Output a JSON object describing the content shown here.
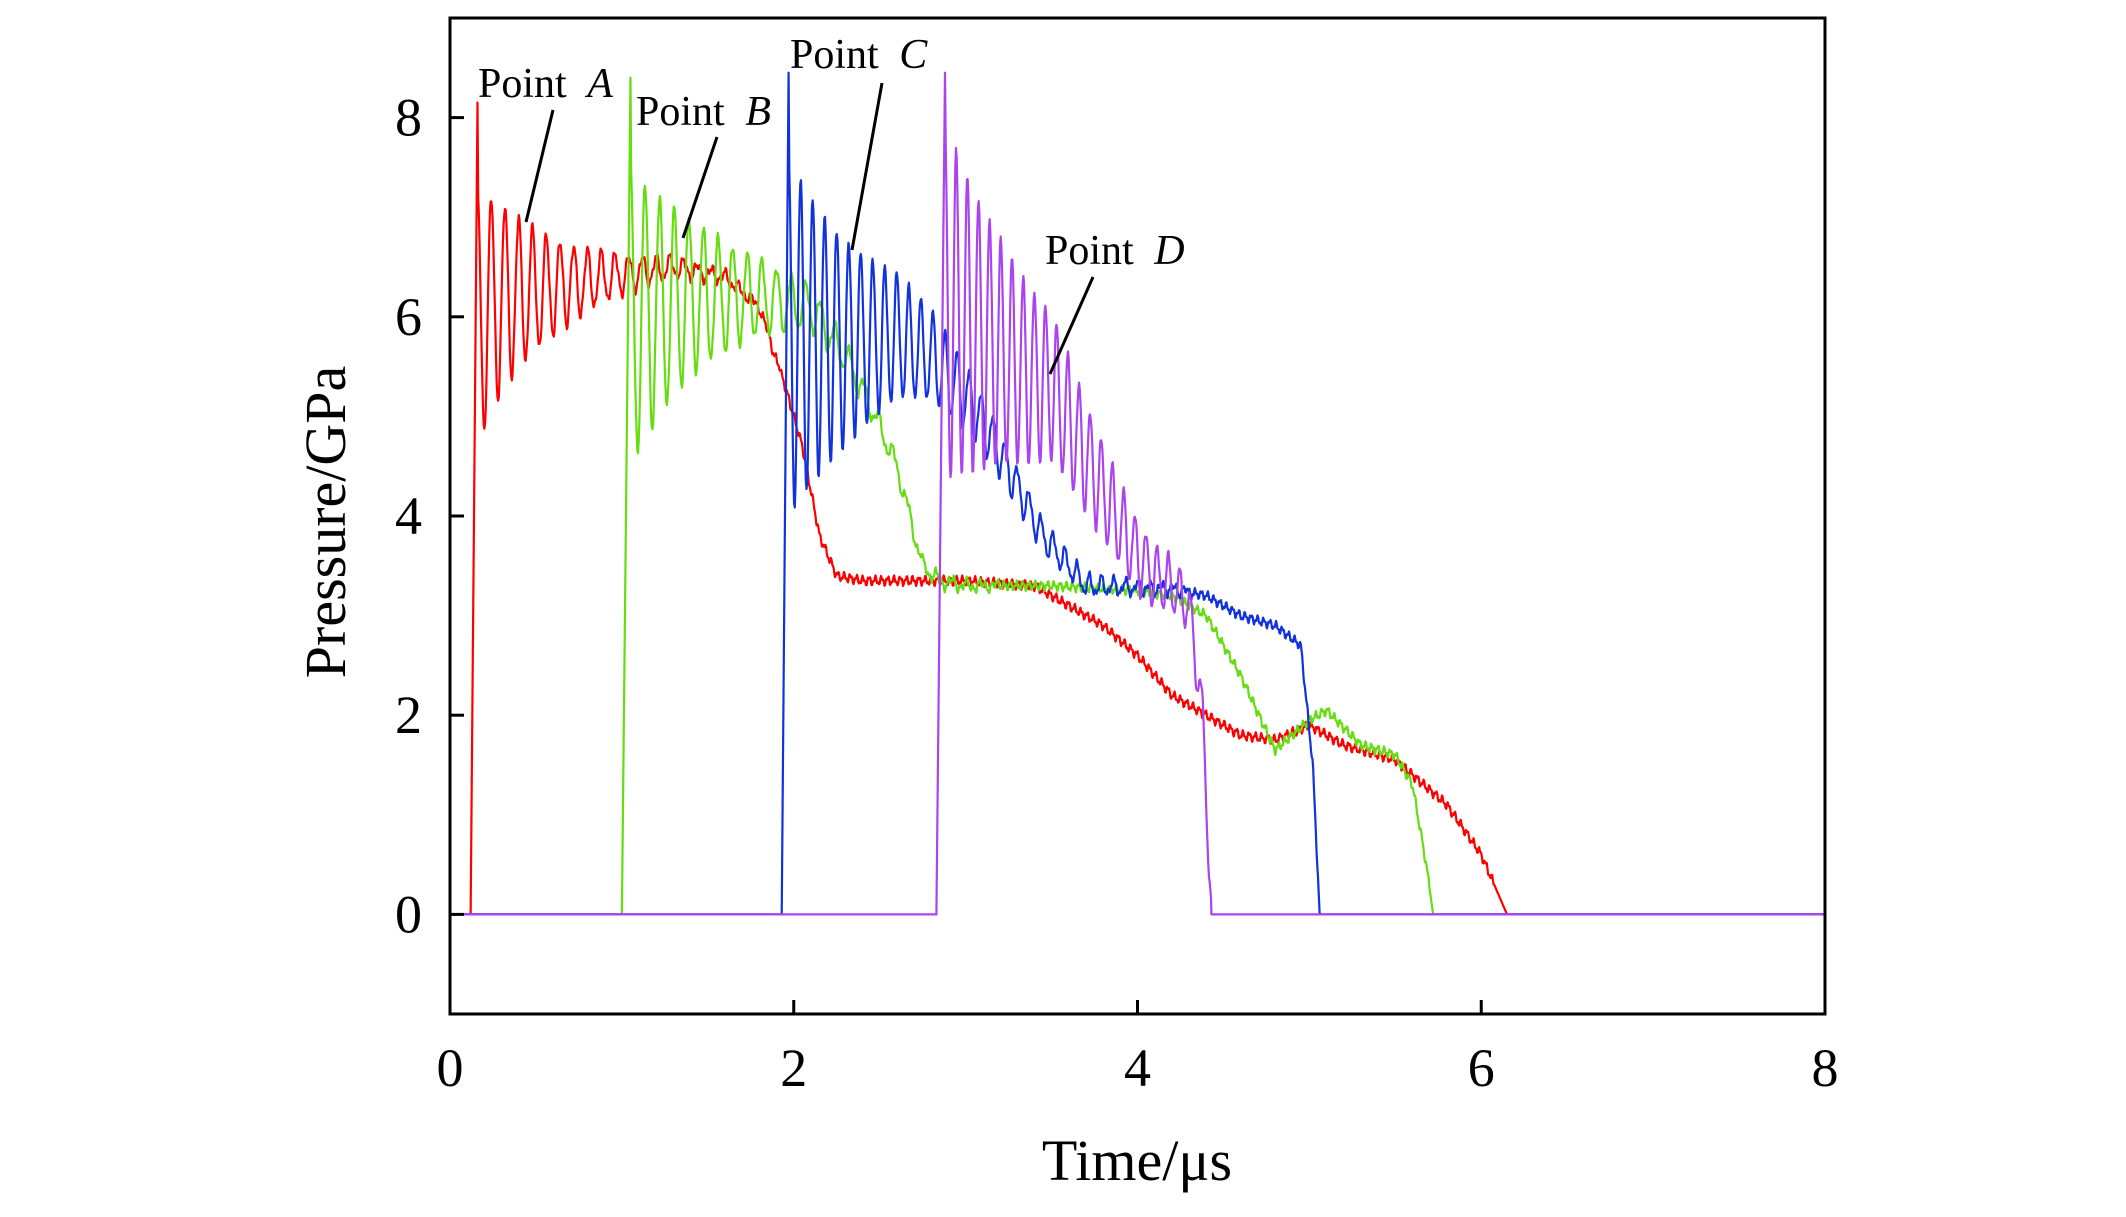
{
  "chart_data": {
    "type": "line",
    "xlabel": "Time/μs",
    "ylabel": "Pressure/GPa",
    "xlim": [
      0,
      8
    ],
    "ylim": [
      -1,
      9
    ],
    "xticks": [
      0,
      2,
      4,
      6,
      8
    ],
    "yticks": [
      0,
      2,
      4,
      6,
      8
    ],
    "grid": false,
    "series": [
      {
        "name": "Point A",
        "color": "#ff0000",
        "start": 0.12,
        "rise_end": 0.16,
        "peak": 8.15,
        "osc_amp": 1.3,
        "osc_period": 0.08,
        "osc_decay": 0.45,
        "x": [
          0.16,
          0.3,
          0.6,
          0.9,
          1.3,
          1.6,
          1.8,
          1.95,
          2.05,
          2.15,
          2.25,
          2.4,
          3.0,
          3.4,
          3.6,
          3.8,
          4.0,
          4.2,
          4.4,
          4.6,
          4.8,
          5.0,
          5.2,
          5.5,
          5.8,
          6.0,
          6.15
        ],
        "y": [
          6.0,
          6.2,
          6.3,
          6.4,
          6.5,
          6.4,
          6.1,
          5.3,
          4.7,
          3.8,
          3.4,
          3.35,
          3.35,
          3.3,
          3.1,
          2.9,
          2.6,
          2.2,
          2.0,
          1.8,
          1.75,
          1.9,
          1.7,
          1.55,
          1.1,
          0.6,
          0.0
        ]
      },
      {
        "name": "Point B",
        "color": "#66dd11",
        "start": 1.0,
        "rise_end": 1.05,
        "peak": 8.4,
        "osc_amp": 1.5,
        "osc_period": 0.085,
        "osc_decay": 0.55,
        "x": [
          1.05,
          1.4,
          1.8,
          2.1,
          2.3,
          2.45,
          2.6,
          2.75,
          2.85,
          3.0,
          3.5,
          4.0,
          4.2,
          4.4,
          4.6,
          4.8,
          5.0,
          5.1,
          5.3,
          5.5,
          5.6,
          5.68,
          5.72
        ],
        "y": [
          6.0,
          6.2,
          6.2,
          6.1,
          5.6,
          5.1,
          4.5,
          3.5,
          3.35,
          3.3,
          3.3,
          3.25,
          3.2,
          3.0,
          2.4,
          1.65,
          1.95,
          2.05,
          1.7,
          1.6,
          1.3,
          0.5,
          0.0
        ]
      },
      {
        "name": "Point C",
        "color": "#1133dd",
        "start": 1.93,
        "rise_end": 1.97,
        "peak": 8.45,
        "osc_amp": 1.8,
        "osc_period": 0.07,
        "osc_decay": 0.6,
        "x": [
          1.97,
          2.3,
          2.6,
          2.8,
          3.0,
          3.15,
          3.3,
          3.45,
          3.55,
          3.7,
          4.0,
          4.2,
          4.4,
          4.6,
          4.8,
          4.95,
          5.02,
          5.06
        ],
        "y": [
          5.8,
          5.75,
          5.8,
          5.6,
          5.2,
          4.8,
          4.3,
          3.8,
          3.6,
          3.3,
          3.28,
          3.27,
          3.2,
          3.0,
          2.9,
          2.7,
          1.5,
          0.0
        ]
      },
      {
        "name": "Point D",
        "color": "#aa44ee",
        "start": 2.83,
        "rise_end": 2.88,
        "peak": 8.45,
        "osc_amp": 1.8,
        "osc_period": 0.065,
        "osc_decay": 0.7,
        "x": [
          2.88,
          3.1,
          3.3,
          3.5,
          3.7,
          3.9,
          4.0,
          4.1,
          4.2,
          4.3,
          4.38,
          4.43
        ],
        "y": [
          6.1,
          5.8,
          5.5,
          5.3,
          4.6,
          3.9,
          3.6,
          3.4,
          3.3,
          3.1,
          2.0,
          0.0
        ]
      }
    ],
    "annotations": [
      {
        "series": "Point A",
        "prefix": "Point ",
        "letter": "A"
      },
      {
        "series": "Point B",
        "prefix": "Point ",
        "letter": "B"
      },
      {
        "series": "Point C",
        "prefix": "Point ",
        "letter": "C"
      },
      {
        "series": "Point D",
        "prefix": "Point ",
        "letter": "D"
      }
    ]
  }
}
